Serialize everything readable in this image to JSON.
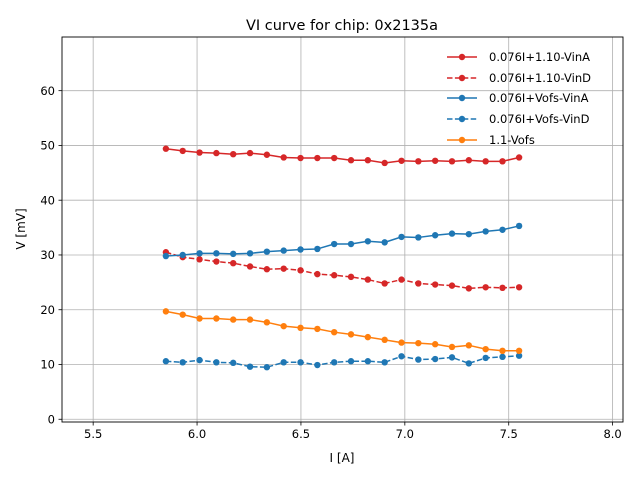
{
  "chart_data": {
    "type": "line",
    "title": "VI curve for chip: 0x2135a",
    "xlabel": "I [A]",
    "ylabel": "V [mV]",
    "xlim": [
      5.35,
      8.05
    ],
    "ylim": [
      -0.5,
      69.8
    ],
    "xticks": [
      5.5,
      6.0,
      6.5,
      7.0,
      7.5,
      8.0
    ],
    "xtick_labels": [
      "5.5",
      "6.0",
      "6.5",
      "7.0",
      "7.5",
      "8.0"
    ],
    "yticks": [
      0,
      10,
      20,
      30,
      40,
      50,
      60
    ],
    "ytick_labels": [
      "0",
      "10",
      "20",
      "30",
      "40",
      "50",
      "60"
    ],
    "grid": true,
    "legend_position": "top-right",
    "x": [
      5.85,
      5.931,
      6.012,
      6.093,
      6.174,
      6.255,
      6.336,
      6.417,
      6.498,
      6.579,
      6.66,
      6.741,
      6.822,
      6.903,
      6.984,
      7.065,
      7.146,
      7.227,
      7.308,
      7.389,
      7.47,
      7.55
    ],
    "series": [
      {
        "name": "0.076I+1.10-VinA",
        "color": "#d62728",
        "linestyle": "solid",
        "marker": "circle",
        "values": [
          49.4,
          49.0,
          48.7,
          48.6,
          48.4,
          48.6,
          48.3,
          47.8,
          47.7,
          47.7,
          47.7,
          47.3,
          47.3,
          46.8,
          47.2,
          47.1,
          47.2,
          47.1,
          47.3,
          47.1,
          47.1,
          47.8
        ]
      },
      {
        "name": "0.076I+1.10-VinD",
        "color": "#d62728",
        "linestyle": "dashed",
        "marker": "circle",
        "values": [
          30.5,
          29.6,
          29.2,
          28.8,
          28.5,
          27.9,
          27.4,
          27.5,
          27.2,
          26.5,
          26.3,
          26.0,
          25.5,
          24.8,
          25.5,
          24.8,
          24.6,
          24.4,
          23.9,
          24.1,
          24.0,
          24.1
        ]
      },
      {
        "name": "0.076I+Vofs-VinA",
        "color": "#1f77b4",
        "linestyle": "solid",
        "marker": "circle",
        "values": [
          29.8,
          30.0,
          30.3,
          30.3,
          30.2,
          30.3,
          30.6,
          30.8,
          31.0,
          31.1,
          32.0,
          32.0,
          32.5,
          32.3,
          33.3,
          33.2,
          33.6,
          33.9,
          33.8,
          34.3,
          34.6,
          35.3
        ]
      },
      {
        "name": "0.076I+Vofs-VinD",
        "color": "#1f77b4",
        "linestyle": "dashed",
        "marker": "circle",
        "values": [
          10.6,
          10.4,
          10.8,
          10.4,
          10.3,
          9.6,
          9.5,
          10.4,
          10.4,
          9.9,
          10.4,
          10.6,
          10.6,
          10.4,
          11.5,
          10.9,
          11.0,
          11.3,
          10.2,
          11.2,
          11.4,
          11.6
        ]
      },
      {
        "name": "1.1-Vofs",
        "color": "#ff7f0e",
        "linestyle": "solid",
        "marker": "circle",
        "values": [
          19.7,
          19.1,
          18.4,
          18.4,
          18.2,
          18.2,
          17.7,
          17.0,
          16.7,
          16.5,
          15.9,
          15.5,
          15.0,
          14.5,
          14.0,
          13.9,
          13.7,
          13.2,
          13.5,
          12.8,
          12.5,
          12.5
        ]
      }
    ]
  }
}
